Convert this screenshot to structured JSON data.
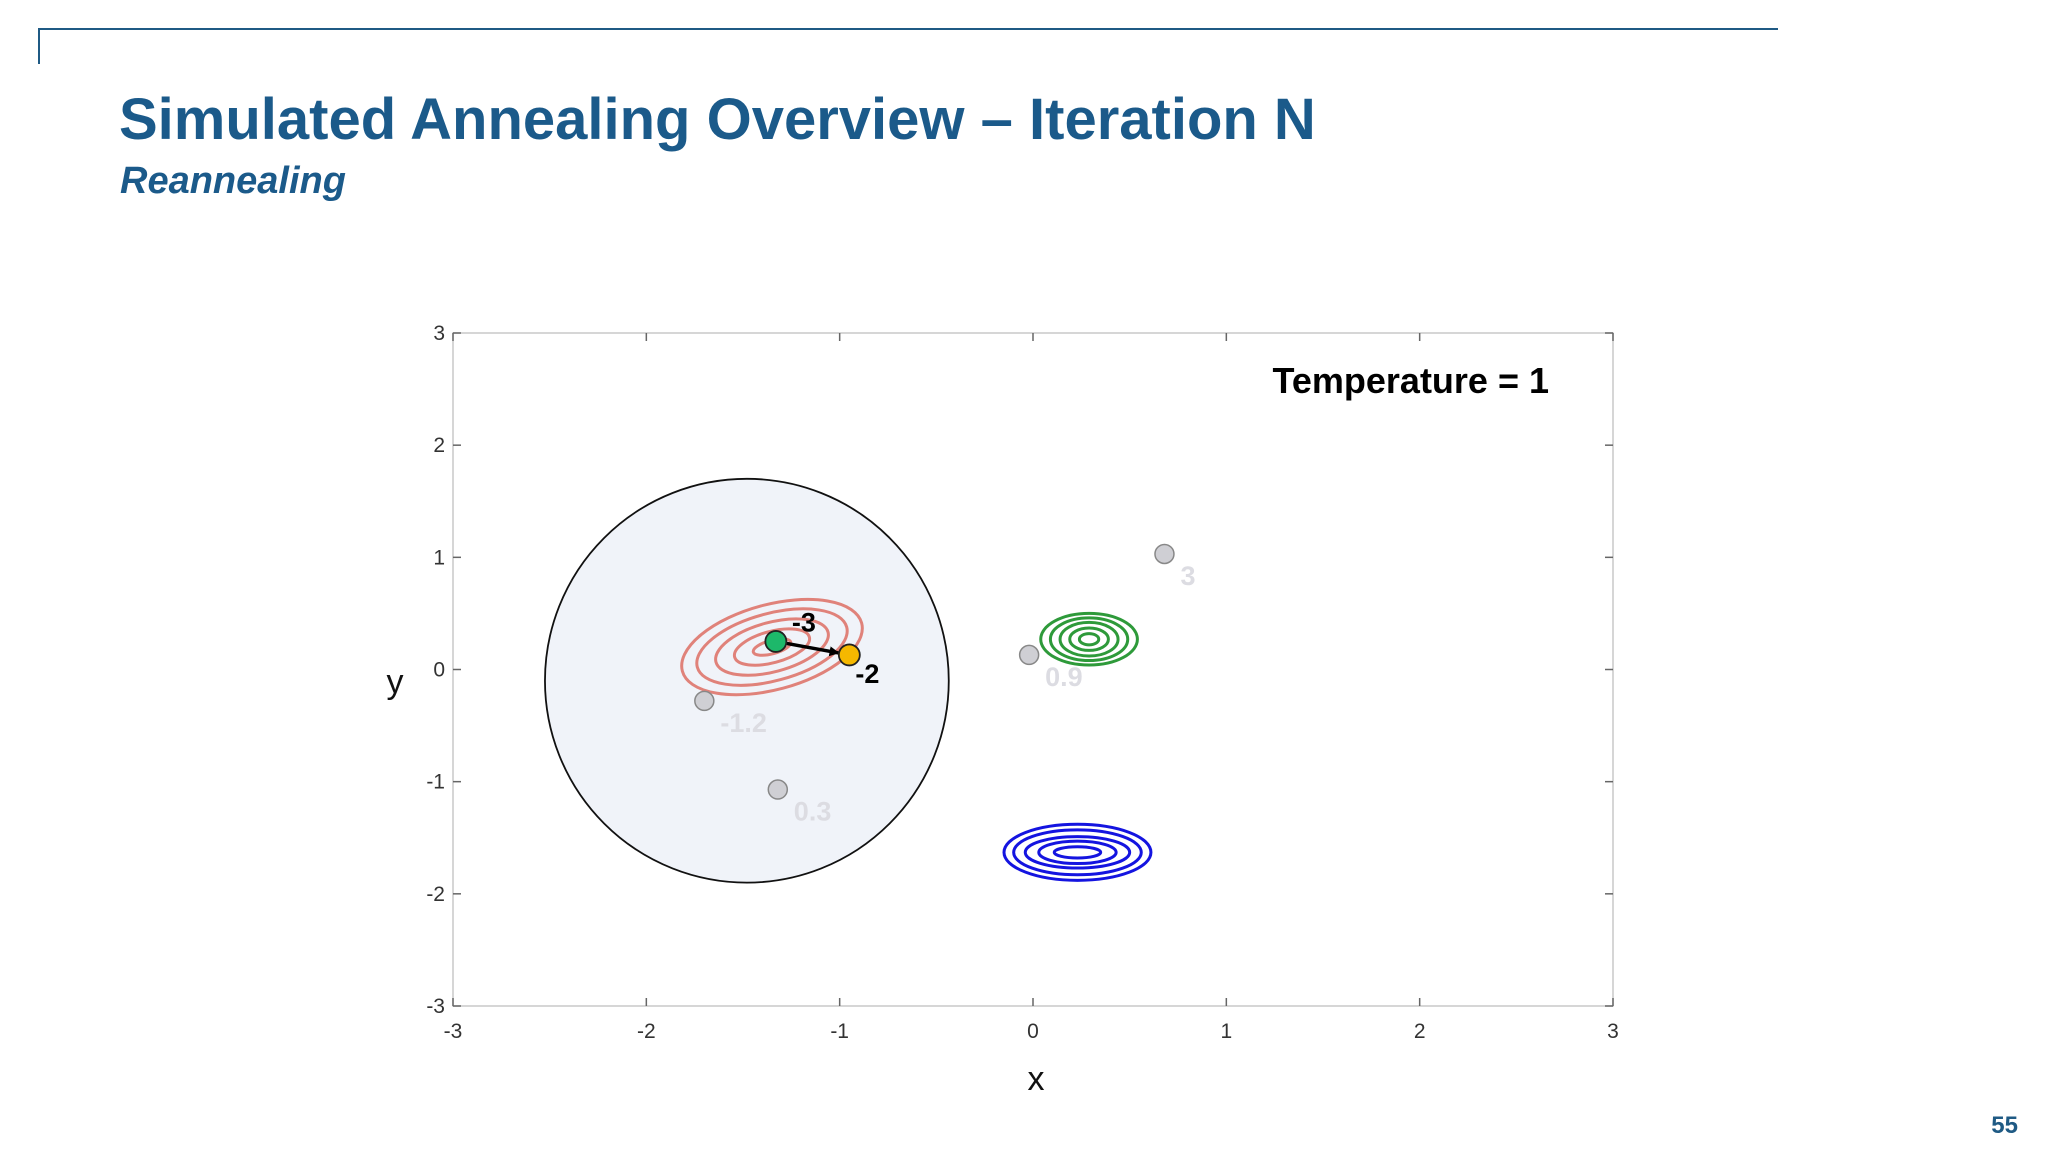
{
  "slide": {
    "title": "Simulated Annealing Overview – Iteration N",
    "subtitle": "Reannealing",
    "page_number": "55"
  },
  "colors": {
    "title": "#1b5a8a",
    "current_point": "#1db86a",
    "candidate_point": "#f5b800",
    "past_point": "#cfcfd4",
    "contour_red": "#e0827a",
    "contour_green": "#2e9a3a",
    "contour_blue": "#1414e0",
    "neighborhood_fill": "#eef2f8"
  },
  "chart_data": {
    "type": "scatter",
    "xlabel": "x",
    "ylabel": "y",
    "xlim": [
      -3,
      3
    ],
    "ylim": [
      -3,
      3
    ],
    "xticks": [
      "-3",
      "-2",
      "-1",
      "0",
      "1",
      "2",
      "3"
    ],
    "yticks": [
      "-3",
      "-2",
      "-1",
      "0",
      "1",
      "2",
      "3"
    ],
    "grid": false,
    "annotation": "Temperature = 1",
    "neighborhood": {
      "center": [
        -1.48,
        -0.1
      ],
      "radius": 1.8
    },
    "current_point": {
      "x": -1.33,
      "y": 0.25,
      "label": "-3"
    },
    "candidate_point": {
      "x": -0.95,
      "y": 0.13,
      "label": "-2"
    },
    "past_points": [
      {
        "x": -1.7,
        "y": -0.28,
        "label": "-1.2"
      },
      {
        "x": -1.32,
        "y": -1.07,
        "label": "0.3"
      },
      {
        "x": -0.02,
        "y": 0.13,
        "label": "0.9"
      },
      {
        "x": 0.68,
        "y": 1.03,
        "label": "3"
      }
    ],
    "contours": [
      {
        "name": "red",
        "center": [
          -1.35,
          0.2
        ],
        "radii": [
          [
            0.1,
            0.06
          ],
          [
            0.2,
            0.14
          ],
          [
            0.3,
            0.22
          ],
          [
            0.4,
            0.3
          ],
          [
            0.48,
            0.38
          ]
        ],
        "tilt": -15
      },
      {
        "name": "green",
        "center": [
          0.29,
          0.27
        ],
        "radii": [
          [
            0.05,
            0.05
          ],
          [
            0.1,
            0.1
          ],
          [
            0.15,
            0.15
          ],
          [
            0.2,
            0.19
          ],
          [
            0.25,
            0.23
          ]
        ],
        "tilt": 0
      },
      {
        "name": "blue",
        "center": [
          0.23,
          -1.63
        ],
        "radii": [
          [
            0.12,
            0.05
          ],
          [
            0.2,
            0.1
          ],
          [
            0.27,
            0.14
          ],
          [
            0.33,
            0.2
          ],
          [
            0.38,
            0.25
          ]
        ],
        "tilt": 0
      }
    ]
  }
}
